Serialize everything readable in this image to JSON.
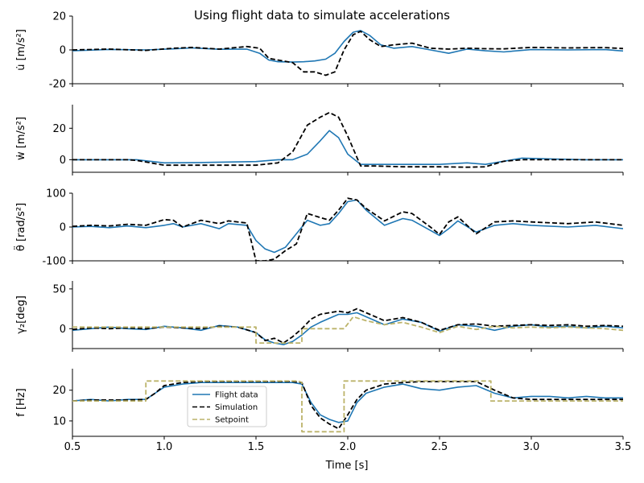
{
  "chart_data": {
    "type": "line",
    "title": "Using flight data to simulate accelerations",
    "xlabel": "Time [s]",
    "xlim": [
      0.5,
      3.5
    ],
    "xticks": [
      0.5,
      1.0,
      1.5,
      2.0,
      2.5,
      3.0,
      3.5
    ],
    "xtick_labels": [
      "0.5",
      "1.0",
      "1.5",
      "2.0",
      "2.5",
      "3.0",
      "3.5"
    ],
    "legend": {
      "placement": "lower-center",
      "entries": [
        "Flight data",
        "Simulation",
        "Setpoint"
      ]
    },
    "colors": {
      "flight": "#1f77b4",
      "simulation": "#000000",
      "setpoint": "#bcb36a"
    },
    "panels": [
      {
        "ylabel": "u̇ [m/s²]",
        "ylim": [
          -20,
          20
        ],
        "yticks": [
          -20,
          0,
          20
        ],
        "series": [
          {
            "name": "Flight data",
            "style": "solid",
            "color": "#1f77b4",
            "x": [
              0.5,
              0.7,
              0.9,
              1.05,
              1.15,
              1.3,
              1.45,
              1.52,
              1.57,
              1.62,
              1.7,
              1.76,
              1.82,
              1.88,
              1.93,
              1.98,
              2.03,
              2.07,
              2.12,
              2.18,
              2.25,
              2.35,
              2.45,
              2.55,
              2.65,
              2.75,
              2.85,
              3.0,
              3.2,
              3.4,
              3.5
            ],
            "y": [
              -0.5,
              0.3,
              0,
              0.6,
              1.2,
              0.4,
              0.5,
              -2,
              -6,
              -7,
              -7.2,
              -7,
              -6.5,
              -5.5,
              -2,
              5,
              10.5,
              11.5,
              8.5,
              3,
              1,
              2,
              0,
              -2,
              0.5,
              -0.5,
              -1.2,
              0.2,
              0,
              0.2,
              -0.6
            ]
          },
          {
            "name": "Simulation",
            "style": "dashed",
            "color": "#000000",
            "x": [
              0.5,
              0.7,
              0.9,
              1.05,
              1.15,
              1.3,
              1.45,
              1.52,
              1.57,
              1.62,
              1.7,
              1.76,
              1.82,
              1.88,
              1.93,
              1.98,
              2.03,
              2.07,
              2.12,
              2.18,
              2.25,
              2.35,
              2.45,
              2.55,
              2.65,
              2.75,
              2.85,
              3.0,
              3.2,
              3.4,
              3.5
            ],
            "y": [
              0,
              0.5,
              -0.3,
              1,
              1.5,
              0.5,
              2,
              1,
              -5,
              -6,
              -7.5,
              -13,
              -13,
              -15,
              -13,
              0,
              9,
              11,
              6,
              2,
              3,
              4,
              1,
              0.5,
              1,
              0.7,
              0.6,
              1.5,
              1.2,
              1.4,
              0.8
            ]
          }
        ]
      },
      {
        "ylabel": "ẇ [m/s²]",
        "ylim": [
          -8,
          35
        ],
        "yticks": [
          0,
          20
        ],
        "series": [
          {
            "name": "Flight data",
            "style": "solid",
            "color": "#1f77b4",
            "x": [
              0.5,
              0.8,
              0.85,
              1.0,
              1.2,
              1.5,
              1.62,
              1.7,
              1.78,
              1.85,
              1.9,
              1.95,
              2.0,
              2.07,
              2.15,
              2.3,
              2.5,
              2.65,
              2.75,
              2.85,
              2.95,
              3.1,
              3.3,
              3.5
            ],
            "y": [
              0,
              0,
              0,
              -2,
              -1.8,
              -1.2,
              0,
              0,
              3.5,
              12,
              18.5,
              14,
              3.5,
              -3,
              -3,
              -3,
              -3,
              -2,
              -3,
              -1,
              1,
              0.5,
              0,
              0
            ]
          },
          {
            "name": "Simulation",
            "style": "dashed",
            "color": "#000000",
            "x": [
              0.5,
              0.8,
              0.85,
              1.0,
              1.2,
              1.5,
              1.62,
              1.7,
              1.78,
              1.85,
              1.9,
              1.95,
              2.0,
              2.07,
              2.15,
              2.3,
              2.5,
              2.65,
              2.75,
              2.85,
              2.95,
              3.1,
              3.3,
              3.5
            ],
            "y": [
              0,
              0,
              -0.5,
              -3.5,
              -3.5,
              -3.5,
              -2,
              5,
              22,
              27,
              30,
              27,
              15,
              -4,
              -4,
              -4.5,
              -4.5,
              -4.8,
              -4.5,
              -1,
              0,
              0,
              0,
              0
            ]
          }
        ]
      },
      {
        "ylabel": "θ̈ [rad/s²]",
        "ylim": [
          -100,
          100
        ],
        "yticks": [
          -100,
          0,
          100
        ],
        "series": [
          {
            "name": "Flight data",
            "style": "solid",
            "color": "#1f77b4",
            "x": [
              0.5,
              0.6,
              0.7,
              0.8,
              0.9,
              1.0,
              1.05,
              1.1,
              1.2,
              1.3,
              1.35,
              1.45,
              1.5,
              1.55,
              1.6,
              1.66,
              1.72,
              1.78,
              1.85,
              1.9,
              1.95,
              2.0,
              2.05,
              2.1,
              2.2,
              2.3,
              2.35,
              2.45,
              2.5,
              2.55,
              2.6,
              2.7,
              2.8,
              2.9,
              3.0,
              3.2,
              3.35,
              3.5
            ],
            "y": [
              0,
              2,
              -2,
              3,
              -2,
              5,
              10,
              0,
              10,
              -5,
              10,
              5,
              -40,
              -65,
              -75,
              -60,
              -20,
              20,
              5,
              10,
              40,
              75,
              80,
              50,
              5,
              25,
              20,
              -10,
              -25,
              -5,
              18,
              -15,
              5,
              10,
              5,
              0,
              5,
              -5
            ]
          },
          {
            "name": "Simulation",
            "style": "dashed",
            "color": "#000000",
            "x": [
              0.5,
              0.6,
              0.7,
              0.8,
              0.9,
              1.0,
              1.05,
              1.1,
              1.2,
              1.3,
              1.35,
              1.45,
              1.5,
              1.55,
              1.6,
              1.66,
              1.72,
              1.78,
              1.85,
              1.9,
              1.95,
              2.0,
              2.05,
              2.1,
              2.2,
              2.3,
              2.35,
              2.45,
              2.5,
              2.55,
              2.6,
              2.7,
              2.8,
              2.9,
              3.0,
              3.2,
              3.35,
              3.5
            ],
            "y": [
              2,
              5,
              3,
              8,
              5,
              22,
              20,
              0,
              20,
              10,
              18,
              12,
              -100,
              -100,
              -95,
              -70,
              -50,
              40,
              28,
              20,
              50,
              85,
              80,
              55,
              18,
              45,
              40,
              0,
              -22,
              15,
              30,
              -20,
              15,
              18,
              15,
              10,
              15,
              5
            ]
          }
        ]
      },
      {
        "ylabel": "γ₂[deg]",
        "ylim": [
          -25,
          60
        ],
        "yticks": [
          0,
          50
        ],
        "series": [
          {
            "name": "Flight data",
            "style": "solid",
            "color": "#1f77b4",
            "x": [
              0.5,
              0.6,
              0.7,
              0.8,
              0.9,
              1.0,
              1.1,
              1.2,
              1.3,
              1.4,
              1.5,
              1.55,
              1.6,
              1.65,
              1.7,
              1.75,
              1.8,
              1.85,
              1.9,
              1.95,
              2.0,
              2.05,
              2.1,
              2.2,
              2.3,
              2.4,
              2.5,
              2.6,
              2.7,
              2.8,
              2.9,
              3.0,
              3.1,
              3.2,
              3.3,
              3.4,
              3.5
            ],
            "y": [
              -2,
              0,
              2,
              0,
              -1,
              3,
              1,
              -2,
              4,
              2,
              -5,
              -14,
              -18,
              -20,
              -16,
              -8,
              2,
              8,
              13,
              18,
              18,
              20,
              15,
              5,
              12,
              8,
              -3,
              5,
              3,
              -2,
              3,
              5,
              2,
              3,
              1,
              3,
              1
            ]
          },
          {
            "name": "Simulation",
            "style": "dashed",
            "color": "#000000",
            "x": [
              0.5,
              0.6,
              0.7,
              0.8,
              0.9,
              1.0,
              1.1,
              1.2,
              1.3,
              1.4,
              1.5,
              1.55,
              1.6,
              1.65,
              1.7,
              1.75,
              1.8,
              1.85,
              1.9,
              1.95,
              2.0,
              2.05,
              2.1,
              2.2,
              2.3,
              2.4,
              2.5,
              2.6,
              2.7,
              2.8,
              2.9,
              3.0,
              3.1,
              3.2,
              3.3,
              3.4,
              3.5
            ],
            "y": [
              -1,
              1,
              0,
              1,
              0,
              2,
              1,
              0,
              3,
              2,
              -5,
              -15,
              -12,
              -18,
              -10,
              0,
              12,
              18,
              20,
              22,
              20,
              25,
              20,
              10,
              14,
              8,
              -2,
              5,
              6,
              3,
              4,
              5,
              4,
              5,
              3,
              4,
              3
            ]
          },
          {
            "name": "Setpoint",
            "style": "dashed",
            "color": "#bcb36a",
            "x": [
              0.5,
              1.5,
              1.5,
              1.75,
              1.75,
              1.98,
              2.03,
              2.1,
              2.2,
              2.3,
              2.4,
              2.5,
              2.6,
              2.7,
              2.8,
              2.9,
              3.0,
              3.1,
              3.2,
              3.3,
              3.4,
              3.5
            ],
            "y": [
              2,
              2,
              -18,
              -18,
              0,
              0,
              15,
              10,
              5,
              8,
              2,
              -5,
              3,
              -1,
              3,
              1,
              2,
              1,
              2,
              1,
              0,
              -2
            ]
          }
        ]
      },
      {
        "ylabel": "f [Hz]",
        "ylim": [
          5,
          27
        ],
        "yticks": [
          10,
          20
        ],
        "series": [
          {
            "name": "Flight data",
            "style": "solid",
            "color": "#1f77b4",
            "x": [
              0.5,
              0.6,
              0.7,
              0.8,
              0.9,
              0.95,
              1.0,
              1.1,
              1.2,
              1.3,
              1.4,
              1.5,
              1.6,
              1.7,
              1.75,
              1.8,
              1.85,
              1.9,
              1.95,
              2.0,
              2.05,
              2.1,
              2.2,
              2.3,
              2.4,
              2.5,
              2.6,
              2.7,
              2.8,
              2.9,
              3.0,
              3.1,
              3.2,
              3.3,
              3.4,
              3.5
            ],
            "y": [
              16.5,
              17,
              16.5,
              17,
              17,
              19,
              21,
              22,
              22.5,
              22.5,
              22.5,
              22.5,
              22.5,
              22.5,
              22,
              16,
              12,
              10.5,
              9.5,
              10,
              16,
              19,
              21,
              22,
              20.5,
              20,
              21,
              21.5,
              19,
              17.5,
              18,
              18,
              17.5,
              18,
              17.5,
              17.5
            ]
          },
          {
            "name": "Simulation",
            "style": "dashed",
            "color": "#000000",
            "x": [
              0.5,
              0.6,
              0.7,
              0.8,
              0.9,
              0.95,
              1.0,
              1.1,
              1.2,
              1.3,
              1.4,
              1.5,
              1.6,
              1.7,
              1.75,
              1.8,
              1.85,
              1.9,
              1.95,
              2.0,
              2.05,
              2.1,
              2.2,
              2.3,
              2.4,
              2.5,
              2.6,
              2.7,
              2.8,
              2.9,
              3.0,
              3.1,
              3.2,
              3.3,
              3.4,
              3.5
            ],
            "y": [
              16.5,
              16.8,
              16.8,
              16.8,
              17,
              19,
              21.5,
              22.5,
              22.8,
              22.8,
              22.8,
              22.8,
              22.8,
              22.8,
              22.5,
              15,
              11,
              9,
              7.5,
              12,
              17,
              20,
              22,
              22.5,
              22.8,
              22.8,
              22.8,
              22.8,
              20,
              17.5,
              17,
              17,
              17,
              17,
              17,
              17
            ]
          },
          {
            "name": "Setpoint",
            "style": "dashed",
            "color": "#bcb36a",
            "x": [
              0.5,
              0.9,
              0.9,
              1.73,
              1.75,
              1.75,
              1.98,
              1.98,
              2.78,
              2.78,
              3.5
            ],
            "y": [
              16.5,
              16.5,
              23,
              23,
              22.5,
              6.5,
              6.5,
              23,
              23,
              16.5,
              16.5
            ]
          }
        ]
      }
    ]
  }
}
